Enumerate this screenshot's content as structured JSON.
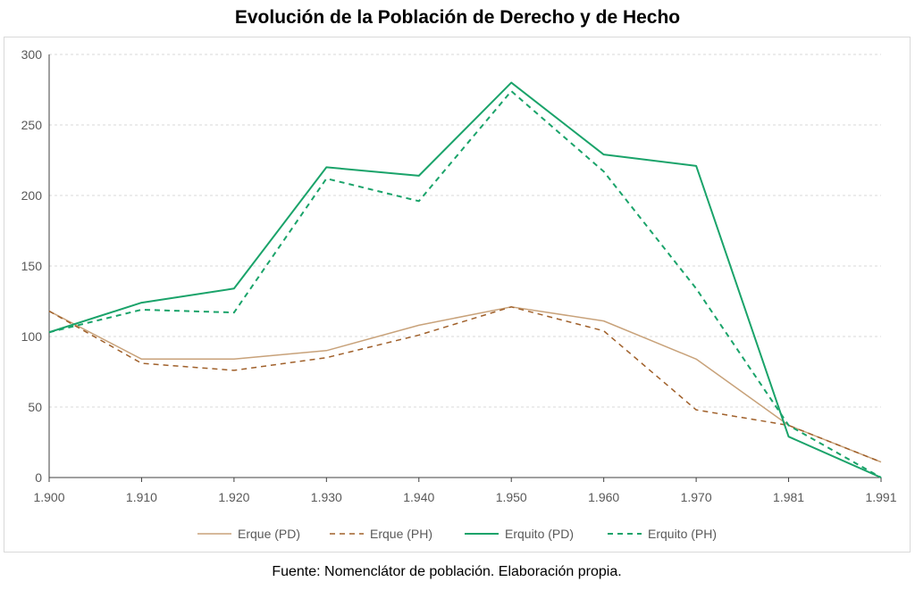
{
  "chart_data": {
    "type": "line",
    "title": "Evolución de la Población de Derecho y de Hecho",
    "categories": [
      "1.900",
      "1.910",
      "1.920",
      "1.930",
      "1.940",
      "1.950",
      "1.960",
      "1.970",
      "1.981",
      "1.991"
    ],
    "ylim": [
      0,
      300
    ],
    "yticks": [
      "0",
      "50",
      "100",
      "150",
      "200",
      "250",
      "300"
    ],
    "grid": true,
    "legend_position": "bottom",
    "series": [
      {
        "name": "Erque (PD)",
        "values": [
          118,
          84,
          84,
          90,
          108,
          121,
          111,
          84,
          37,
          11
        ],
        "color": "#C8A27A",
        "dash": "solid"
      },
      {
        "name": "Erque (PH)",
        "values": [
          118,
          81,
          76,
          85,
          101,
          121,
          104,
          48,
          37,
          11
        ],
        "color": "#A0602A",
        "dash": "dashed"
      },
      {
        "name": "Erquito (PD)",
        "values": [
          103,
          124,
          134,
          220,
          214,
          280,
          229,
          221,
          29,
          0
        ],
        "color": "#1AA36A",
        "dash": "solid"
      },
      {
        "name": "Erquito (PH)",
        "values": [
          103,
          119,
          117,
          212,
          196,
          274,
          217,
          134,
          37,
          0
        ],
        "color": "#1AA36A",
        "dash": "dashed"
      }
    ]
  },
  "caption": "Fuente: Nomenclátor de población. Elaboración propia."
}
